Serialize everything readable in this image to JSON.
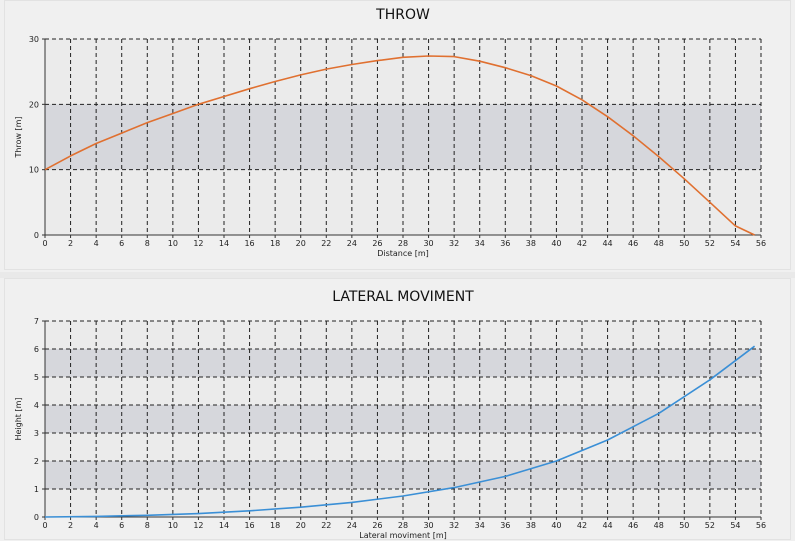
{
  "chart_data": [
    {
      "type": "line",
      "title": "THROW",
      "xlabel": "Distance [m]",
      "ylabel": "Throw [m]",
      "xlim": [
        0,
        56
      ],
      "ylim": [
        0,
        30
      ],
      "x_ticks": [
        0,
        2,
        4,
        6,
        8,
        10,
        12,
        14,
        16,
        18,
        20,
        22,
        24,
        26,
        28,
        30,
        32,
        34,
        36,
        38,
        40,
        42,
        44,
        46,
        48,
        50,
        52,
        54,
        56
      ],
      "y_ticks": [
        0,
        10,
        20,
        30
      ],
      "grid": true,
      "bands": [
        [
          10,
          20
        ]
      ],
      "series": [
        {
          "color": "#e07030",
          "x": [
            0,
            2,
            4,
            6,
            8,
            10,
            12,
            14,
            16,
            18,
            20,
            22,
            24,
            26,
            28,
            30,
            32,
            34,
            36,
            38,
            40,
            42,
            44,
            46,
            48,
            50,
            52,
            54,
            55.5
          ],
          "y": [
            10,
            12.1,
            14.0,
            15.6,
            17.2,
            18.6,
            20.0,
            21.2,
            22.4,
            23.5,
            24.5,
            25.4,
            26.1,
            26.7,
            27.2,
            27.4,
            27.3,
            26.6,
            25.6,
            24.4,
            22.8,
            20.7,
            18.1,
            15.2,
            12.0,
            8.6,
            5.0,
            1.4,
            0
          ]
        }
      ]
    },
    {
      "type": "line",
      "title": "LATERAL MOVIMENT",
      "xlabel": "Lateral moviment [m]",
      "ylabel": "Height [m]",
      "xlim": [
        0,
        56
      ],
      "ylim": [
        0,
        7
      ],
      "x_ticks": [
        0,
        2,
        4,
        6,
        8,
        10,
        12,
        14,
        16,
        18,
        20,
        22,
        24,
        26,
        28,
        30,
        32,
        34,
        36,
        38,
        40,
        42,
        44,
        46,
        48,
        50,
        52,
        54,
        56
      ],
      "y_ticks": [
        0,
        1,
        2,
        3,
        4,
        5,
        6,
        7
      ],
      "grid": true,
      "bands": [
        [
          1,
          2
        ],
        [
          3,
          4
        ],
        [
          5,
          6
        ]
      ],
      "series": [
        {
          "color": "#3a8fd6",
          "x": [
            0,
            4,
            8,
            12,
            16,
            20,
            24,
            28,
            32,
            36,
            40,
            44,
            48,
            52,
            55.5
          ],
          "y": [
            0,
            0.02,
            0.06,
            0.12,
            0.22,
            0.35,
            0.52,
            0.75,
            1.05,
            1.45,
            2.0,
            2.75,
            3.7,
            4.9,
            6.1
          ]
        }
      ]
    }
  ]
}
